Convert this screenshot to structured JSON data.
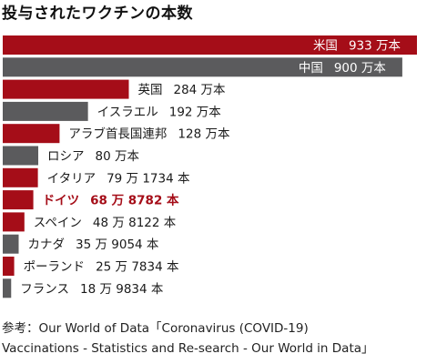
{
  "chart_data": {
    "type": "bar",
    "orientation": "horizontal",
    "title": "投与されたワクチンの本数",
    "categories": [
      "米国",
      "中国",
      "英国",
      "イスラエル",
      "アラブ首長国連邦",
      "ロシア",
      "イタリア",
      "ドイツ",
      "スペイン",
      "カナダ",
      "ポーランド",
      "フランス"
    ],
    "values": [
      9330000,
      9000000,
      2840000,
      1920000,
      1280000,
      800000,
      791734,
      688782,
      488122,
      359054,
      257834,
      189834
    ],
    "value_labels": [
      "933 万本",
      "900 万本",
      "284 万本",
      "192 万本",
      "128 万本",
      "80 万本",
      "79 万 1734 本",
      "68 万 8782 本",
      "48 万 8122 本",
      "35 万 9054 本",
      "25 万 7834 本",
      "18 万 9834 本"
    ],
    "bar_colors": [
      "#a50d18",
      "#5b5b5d",
      "#a50d18",
      "#5b5b5d",
      "#a50d18",
      "#5b5b5d",
      "#a50d18",
      "#a50d18",
      "#a50d18",
      "#5b5b5d",
      "#a50d18",
      "#5b5b5d"
    ],
    "highlight_index": 7,
    "highlight_color": "#a50d18",
    "xlim": [
      0,
      9330000
    ],
    "grid": false
  },
  "source": {
    "line1": "参考：Our World of Data「Coronavirus (COVID-19)",
    "line2": "Vaccinations - Statistics and Re-search - Our World in Data」"
  }
}
